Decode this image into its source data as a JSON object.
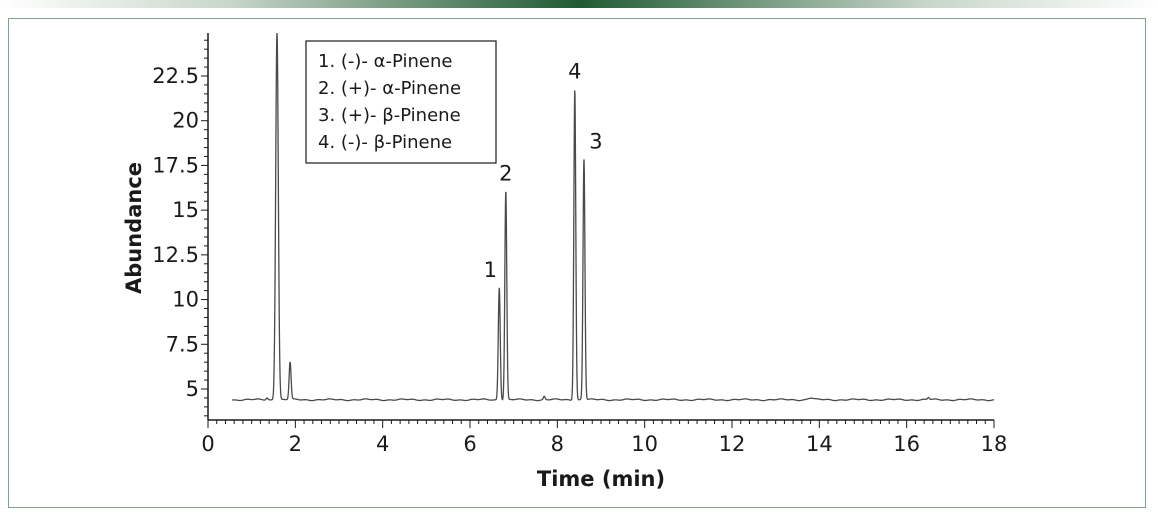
{
  "chart_data": {
    "type": "line",
    "title": "",
    "xlabel": "Time (min)",
    "ylabel": "Abundance",
    "xlim": [
      0,
      18
    ],
    "ylim": [
      3,
      25
    ],
    "x_ticks": [
      0,
      2,
      4,
      6,
      8,
      10,
      12,
      14,
      16,
      18
    ],
    "y_ticks": [
      5,
      7.5,
      10,
      12.5,
      15,
      17.5,
      20,
      22.5
    ],
    "y_tick_labels": [
      "5",
      "7.5",
      "10",
      "12.5",
      "15",
      "17.5",
      "20",
      "22.5"
    ],
    "baseline": 4.4,
    "grid": false,
    "legend_position": "top-left",
    "legend": [
      "1. (-)- α-Pinene",
      "2. (+)- α-Pinene",
      "3. (+)- β-Pinene",
      "4. (-)- β-Pinene"
    ],
    "peaks": [
      {
        "label": "",
        "time": 1.58,
        "height": 25
      },
      {
        "label": "",
        "time": 1.88,
        "height": 6.5
      },
      {
        "label": "1",
        "time": 6.67,
        "height": 10.7
      },
      {
        "label": "2",
        "time": 6.82,
        "height": 16.1
      },
      {
        "label": "4",
        "time": 8.4,
        "height": 21.8
      },
      {
        "label": "3",
        "time": 8.61,
        "height": 17.9
      }
    ],
    "line_color": "#4a4a4a"
  }
}
